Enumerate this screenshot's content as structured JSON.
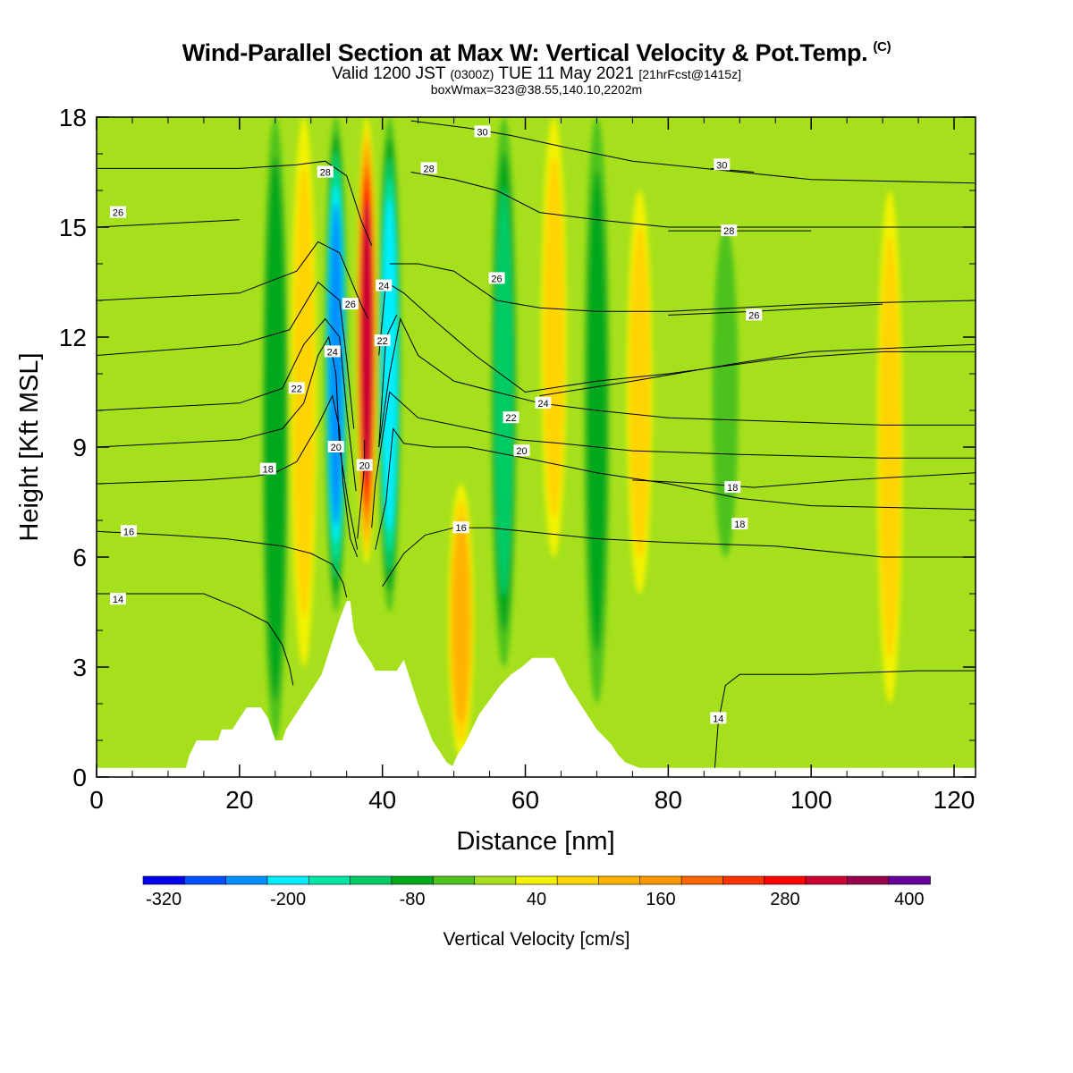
{
  "title": {
    "main": "Wind-Parallel Section at Max W: Vertical Velocity & Pot.Temp.",
    "mark": "(C)",
    "valid_prefix": "Valid 1200 JST",
    "valid_utc": "(0300Z)",
    "valid_suffix": "TUE 11 May 2021",
    "forecast": "[21hrFcst@1415z]",
    "box": "boxWmax=323@38.55,140.10,2202m"
  },
  "chart_data": {
    "type": "contour-cross-section",
    "xlabel": "Distance [nm]",
    "ylabel": "Height [Kft MSL]",
    "xlim": [
      0,
      123
    ],
    "ylim": [
      0,
      18
    ],
    "x_ticks": [
      "0",
      "20",
      "40",
      "60",
      "80",
      "100",
      "120"
    ],
    "y_ticks": [
      "0",
      "3",
      "6",
      "9",
      "12",
      "15",
      "18"
    ],
    "colorbar": {
      "title": "Vertical Velocity [cm/s]",
      "labels": [
        "-320",
        "-200",
        "-80",
        "40",
        "160",
        "280",
        "400"
      ],
      "min": -340,
      "max": 420,
      "step": 40,
      "colors": [
        "#0000ee",
        "#0050ff",
        "#0090ff",
        "#00eeff",
        "#00e6a5",
        "#00cc66",
        "#00a81c",
        "#4dc21c",
        "#a6e01c",
        "#f2f200",
        "#ffd400",
        "#ffb300",
        "#ff9900",
        "#ff6600",
        "#ff3300",
        "#ff0000",
        "#cc0033",
        "#99004d",
        "#660099"
      ]
    },
    "w_features": [
      {
        "x": 33.5,
        "y0": 4.5,
        "y1": 18,
        "value": -240
      },
      {
        "x": 41.0,
        "y0": 4.5,
        "y1": 18,
        "value": -200
      },
      {
        "x": 37.8,
        "y0": 5.8,
        "y1": 18,
        "value": 323
      },
      {
        "x": 51.0,
        "y0": 0.5,
        "y1": 8.0,
        "value": 130
      },
      {
        "x": 29.0,
        "y0": 3.0,
        "y1": 18,
        "value": 60
      },
      {
        "x": 25.0,
        "y0": 1.0,
        "y1": 18,
        "value": -100
      },
      {
        "x": 57.0,
        "y0": 3.0,
        "y1": 18,
        "value": -110
      },
      {
        "x": 64.0,
        "y0": 6.0,
        "y1": 18,
        "value": 70
      },
      {
        "x": 70.0,
        "y0": 2.0,
        "y1": 18,
        "value": -90
      },
      {
        "x": 76.0,
        "y0": 5.0,
        "y1": 16,
        "value": 60
      },
      {
        "x": 88.0,
        "y0": 6.0,
        "y1": 15,
        "value": -60
      },
      {
        "x": 111.0,
        "y0": 2.0,
        "y1": 16,
        "value": 60
      }
    ],
    "terrain_kft": [
      [
        0,
        0.25
      ],
      [
        12.5,
        0.25
      ],
      [
        13,
        0.6
      ],
      [
        14,
        1.0
      ],
      [
        17,
        1.0
      ],
      [
        17.5,
        1.3
      ],
      [
        19,
        1.3
      ],
      [
        20,
        1.6
      ],
      [
        21,
        1.9
      ],
      [
        23,
        1.9
      ],
      [
        24,
        1.6
      ],
      [
        24.5,
        1.3
      ],
      [
        25,
        1.0
      ],
      [
        26,
        1.0
      ],
      [
        26.5,
        1.3
      ],
      [
        27.5,
        1.6
      ],
      [
        28.5,
        1.9
      ],
      [
        29.5,
        2.2
      ],
      [
        30.5,
        2.5
      ],
      [
        31.5,
        2.8
      ],
      [
        32,
        3.1
      ],
      [
        33,
        3.7
      ],
      [
        34,
        4.3
      ],
      [
        35,
        4.8
      ],
      [
        35.5,
        4.8
      ],
      [
        36,
        4.0
      ],
      [
        36.5,
        3.7
      ],
      [
        37.5,
        3.4
      ],
      [
        38.5,
        3.1
      ],
      [
        39,
        2.9
      ],
      [
        42,
        2.9
      ],
      [
        43,
        3.2
      ],
      [
        44,
        2.6
      ],
      [
        45,
        2.0
      ],
      [
        46,
        1.5
      ],
      [
        47,
        1.0
      ],
      [
        48,
        0.7
      ],
      [
        49,
        0.4
      ],
      [
        49.8,
        0.3
      ],
      [
        50.5,
        0.6
      ],
      [
        51.5,
        0.9
      ],
      [
        52.5,
        1.3
      ],
      [
        53.5,
        1.7
      ],
      [
        55,
        2.1
      ],
      [
        56.5,
        2.5
      ],
      [
        58,
        2.8
      ],
      [
        59.5,
        3.0
      ],
      [
        61,
        3.25
      ],
      [
        64,
        3.25
      ],
      [
        65,
        2.9
      ],
      [
        66,
        2.5
      ],
      [
        67,
        2.2
      ],
      [
        68,
        1.9
      ],
      [
        69,
        1.6
      ],
      [
        70,
        1.3
      ],
      [
        71,
        1.1
      ],
      [
        72,
        0.9
      ],
      [
        73,
        0.6
      ],
      [
        74,
        0.4
      ],
      [
        76,
        0.25
      ],
      [
        123,
        0.25
      ]
    ],
    "theta_contours": [
      {
        "label": "14",
        "pts": [
          [
            0,
            5.0
          ],
          [
            15,
            5.0
          ],
          [
            20,
            4.6
          ],
          [
            24,
            4.2
          ],
          [
            26,
            3.6
          ],
          [
            27,
            3.0
          ],
          [
            27.5,
            2.5
          ]
        ],
        "lx": 3,
        "ly": 4.85
      },
      {
        "label": "14",
        "pts": [
          [
            86.5,
            0.2
          ],
          [
            87,
            1.5
          ],
          [
            88,
            2.5
          ],
          [
            90,
            2.8
          ],
          [
            100,
            2.8
          ],
          [
            115,
            2.9
          ],
          [
            123,
            2.9
          ]
        ],
        "lx": 87,
        "ly": 1.6
      },
      {
        "label": "16",
        "pts": [
          [
            0,
            6.7
          ],
          [
            10,
            6.6
          ],
          [
            18,
            6.5
          ],
          [
            22,
            6.4
          ],
          [
            26,
            6.3
          ],
          [
            30,
            6.1
          ],
          [
            33,
            5.8
          ],
          [
            34.5,
            5.3
          ],
          [
            35,
            4.9
          ]
        ],
        "lx": 4.5,
        "ly": 6.7
      },
      {
        "label": "16",
        "pts": [
          [
            40,
            5.2
          ],
          [
            43,
            6.1
          ],
          [
            46,
            6.6
          ],
          [
            50,
            6.8
          ],
          [
            55,
            6.8
          ],
          [
            60,
            6.7
          ],
          [
            70,
            6.5
          ],
          [
            80,
            6.4
          ],
          [
            95,
            6.3
          ],
          [
            110,
            6.0
          ],
          [
            123,
            6.0
          ]
        ],
        "lx": 51,
        "ly": 6.8
      },
      {
        "label": "18",
        "pts": [
          [
            0,
            8.0
          ],
          [
            15,
            8.1
          ],
          [
            22,
            8.2
          ],
          [
            25,
            8.3
          ],
          [
            28,
            8.6
          ],
          [
            31,
            9.6
          ],
          [
            33,
            10.4
          ],
          [
            34,
            9.5
          ],
          [
            34.5,
            8.0
          ],
          [
            35.5,
            6.5
          ],
          [
            36.5,
            6.0
          ]
        ],
        "lx": 24,
        "ly": 8.4
      },
      {
        "label": "18",
        "pts": [
          [
            39,
            6.2
          ],
          [
            40.5,
            7.5
          ],
          [
            41.5,
            9.5
          ],
          [
            43,
            9.1
          ],
          [
            47,
            9.0
          ],
          [
            52,
            9.0
          ],
          [
            60,
            8.7
          ],
          [
            70,
            8.3
          ],
          [
            80,
            8.0
          ],
          [
            90,
            7.6
          ],
          [
            100,
            7.4
          ],
          [
            123,
            7.3
          ]
        ],
        "lx": 90,
        "ly": 6.9
      },
      {
        "label": "18",
        "pts": [
          [
            75,
            8.1
          ],
          [
            85,
            8.0
          ],
          [
            92,
            7.9
          ],
          [
            105,
            8.1
          ],
          [
            123,
            8.3
          ]
        ],
        "lx": 89,
        "ly": 7.9
      },
      {
        "label": "20",
        "pts": [
          [
            0,
            9.0
          ],
          [
            20,
            9.2
          ],
          [
            26,
            9.5
          ],
          [
            29,
            10.2
          ],
          [
            31,
            11.5
          ],
          [
            32.5,
            12.0
          ],
          [
            33.5,
            11.0
          ],
          [
            34,
            9.0
          ],
          [
            35.2,
            7.5
          ],
          [
            36.5,
            6.2
          ]
        ],
        "lx": 33.5,
        "ly": 9.0
      },
      {
        "label": "20",
        "pts": [
          [
            38.5,
            6.8
          ],
          [
            39,
            8.0
          ],
          [
            41,
            10.5
          ],
          [
            45,
            9.8
          ],
          [
            50,
            9.6
          ],
          [
            55,
            9.4
          ],
          [
            59,
            9.2
          ],
          [
            65,
            9.1
          ],
          [
            75,
            8.9
          ],
          [
            90,
            8.8
          ],
          [
            110,
            8.7
          ],
          [
            123,
            8.7
          ]
        ],
        "lx": 59.5,
        "ly": 8.9
      },
      {
        "label": "20",
        "pts": [
          [
            36.5,
            6.5
          ],
          [
            37.5,
            8.5
          ],
          [
            37.5,
            9.2
          ]
        ],
        "lx": 37.5,
        "ly": 8.5
      },
      {
        "label": "22",
        "pts": [
          [
            0,
            10.0
          ],
          [
            20,
            10.2
          ],
          [
            26,
            10.6
          ],
          [
            29,
            11.8
          ],
          [
            32,
            12.5
          ],
          [
            34,
            12.0
          ],
          [
            35,
            10.0
          ],
          [
            36.3,
            7.8
          ]
        ],
        "lx": 28,
        "ly": 10.6
      },
      {
        "label": "22",
        "pts": [
          [
            39.5,
            9.0
          ],
          [
            41,
            11.0
          ],
          [
            42.5,
            12.5
          ],
          [
            45,
            11.5
          ],
          [
            50,
            10.8
          ],
          [
            56,
            10.5
          ],
          [
            62,
            10.2
          ],
          [
            70,
            10.0
          ],
          [
            80,
            9.8
          ],
          [
            95,
            9.7
          ],
          [
            110,
            9.6
          ],
          [
            123,
            9.6
          ]
        ],
        "lx": 58,
        "ly": 9.8
      },
      {
        "label": "22",
        "pts": [
          [
            39.5,
            9.0
          ],
          [
            40.5,
            12.0
          ],
          [
            42,
            12.6
          ]
        ],
        "lx": 40,
        "ly": 11.9
      },
      {
        "label": "24",
        "pts": [
          [
            0,
            11.5
          ],
          [
            20,
            11.8
          ],
          [
            27,
            12.2
          ],
          [
            31,
            13.5
          ],
          [
            34,
            13.0
          ],
          [
            35,
            11.4
          ],
          [
            36,
            9.5
          ]
        ],
        "lx": 33,
        "ly": 11.6
      },
      {
        "label": "24",
        "pts": [
          [
            39.5,
            11.5
          ],
          [
            40.5,
            13.5
          ],
          [
            43,
            13.2
          ],
          [
            47,
            12.5
          ],
          [
            53,
            11.5
          ],
          [
            60,
            10.5
          ],
          [
            70,
            10.8
          ],
          [
            80,
            11.0
          ],
          [
            95,
            11.4
          ],
          [
            110,
            11.6
          ],
          [
            123,
            11.6
          ]
        ],
        "lx": 40.2,
        "ly": 13.4
      },
      {
        "label": "24",
        "pts": [
          [
            62,
            10.4
          ],
          [
            75,
            10.8
          ],
          [
            90,
            11.3
          ],
          [
            100,
            11.6
          ],
          [
            123,
            11.8
          ]
        ],
        "lx": 62.5,
        "ly": 10.2
      },
      {
        "label": "26",
        "pts": [
          [
            0,
            13.0
          ],
          [
            20,
            13.2
          ],
          [
            28,
            13.8
          ],
          [
            31,
            14.6
          ],
          [
            34,
            14.3
          ],
          [
            37,
            12.9
          ],
          [
            38,
            12.5
          ]
        ],
        "lx": 35.5,
        "ly": 12.9
      },
      {
        "label": "26",
        "pts": [
          [
            41,
            14.0
          ],
          [
            45,
            14.0
          ],
          [
            50,
            13.8
          ],
          [
            56,
            13.0
          ],
          [
            62,
            12.8
          ],
          [
            70,
            12.7
          ],
          [
            80,
            12.7
          ],
          [
            90,
            12.8
          ],
          [
            100,
            12.9
          ],
          [
            123,
            13.0
          ]
        ],
        "lx": 56,
        "ly": 13.6
      },
      {
        "label": "26",
        "pts": [
          [
            0,
            15.0
          ],
          [
            10,
            15.1
          ],
          [
            20,
            15.2
          ]
        ],
        "lx": 3,
        "ly": 15.4
      },
      {
        "label": "26",
        "pts": [
          [
            80,
            12.6
          ],
          [
            92,
            12.7
          ],
          [
            110,
            12.9
          ]
        ],
        "lx": 92,
        "ly": 12.6
      },
      {
        "label": "28",
        "pts": [
          [
            0,
            16.6
          ],
          [
            20,
            16.6
          ],
          [
            28,
            16.7
          ],
          [
            32,
            16.8
          ],
          [
            35,
            16.4
          ],
          [
            37,
            15.2
          ],
          [
            38.5,
            14.5
          ]
        ],
        "lx": 32,
        "ly": 16.5
      },
      {
        "label": "28",
        "pts": [
          [
            44,
            16.5
          ],
          [
            50,
            16.3
          ],
          [
            56,
            16.0
          ],
          [
            62,
            15.4
          ],
          [
            70,
            15.2
          ],
          [
            80,
            15.0
          ],
          [
            90,
            15.0
          ],
          [
            100,
            15.0
          ],
          [
            123,
            15.0
          ]
        ],
        "lx": 46.5,
        "ly": 16.6
      },
      {
        "label": "28",
        "pts": [
          [
            80,
            14.9
          ],
          [
            88,
            14.9
          ],
          [
            100,
            14.9
          ]
        ],
        "lx": 88.5,
        "ly": 14.9
      },
      {
        "label": "30",
        "pts": [
          [
            44,
            17.9
          ],
          [
            52,
            17.7
          ],
          [
            58,
            17.5
          ],
          [
            65,
            17.2
          ],
          [
            75,
            16.8
          ],
          [
            85,
            16.6
          ],
          [
            100,
            16.3
          ],
          [
            123,
            16.2
          ]
        ],
        "lx": 54,
        "ly": 17.6
      },
      {
        "label": "30",
        "pts": [
          [
            86,
            16.6
          ],
          [
            92,
            16.5
          ]
        ],
        "lx": 87.5,
        "ly": 16.7
      }
    ]
  }
}
